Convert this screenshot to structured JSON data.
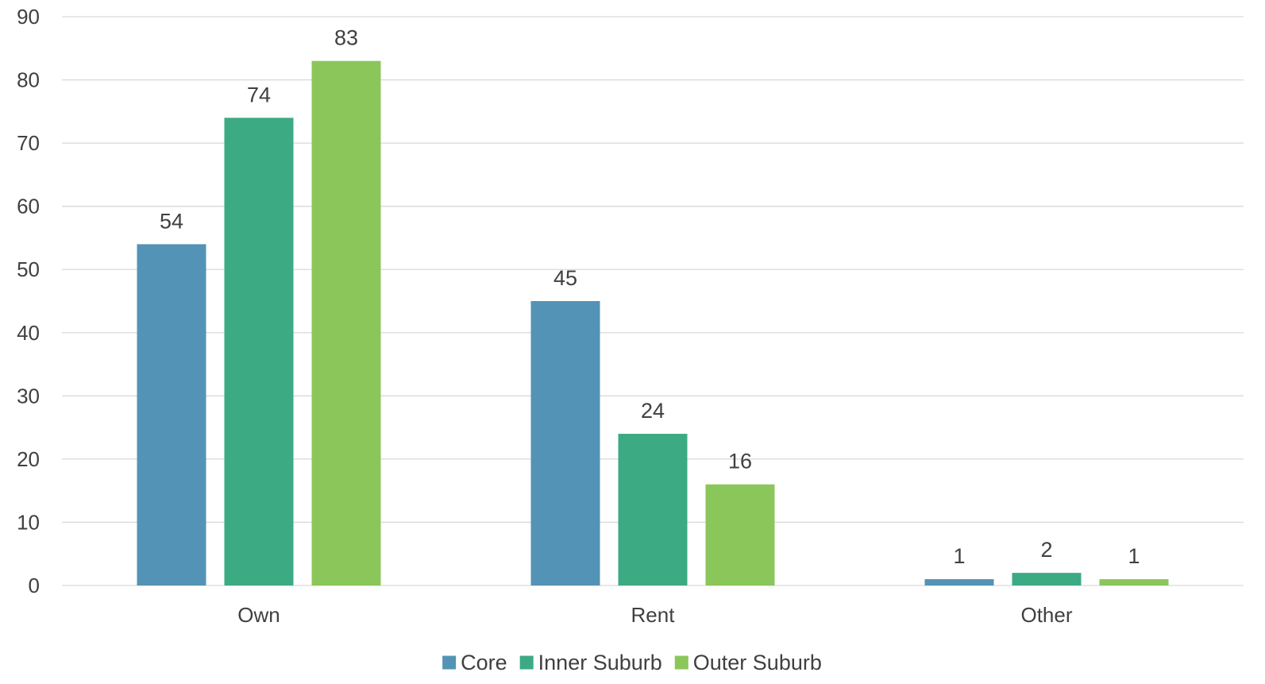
{
  "chart_data": {
    "type": "bar",
    "title": "",
    "xlabel": "",
    "ylabel": "",
    "categories": [
      "Own",
      "Rent",
      "Other"
    ],
    "series": [
      {
        "name": "Core",
        "color": "#5393b5",
        "values": [
          54,
          45,
          1
        ]
      },
      {
        "name": "Inner Suburb",
        "color": "#3caa83",
        "values": [
          74,
          24,
          2
        ]
      },
      {
        "name": "Outer Suburb",
        "color": "#8bc65a",
        "values": [
          83,
          16,
          1
        ]
      }
    ],
    "ylim": [
      0,
      90
    ],
    "yticks": [
      0,
      10,
      20,
      30,
      40,
      50,
      60,
      70,
      80,
      90
    ],
    "grid": true,
    "legend_position": "bottom",
    "data_labels": true
  }
}
